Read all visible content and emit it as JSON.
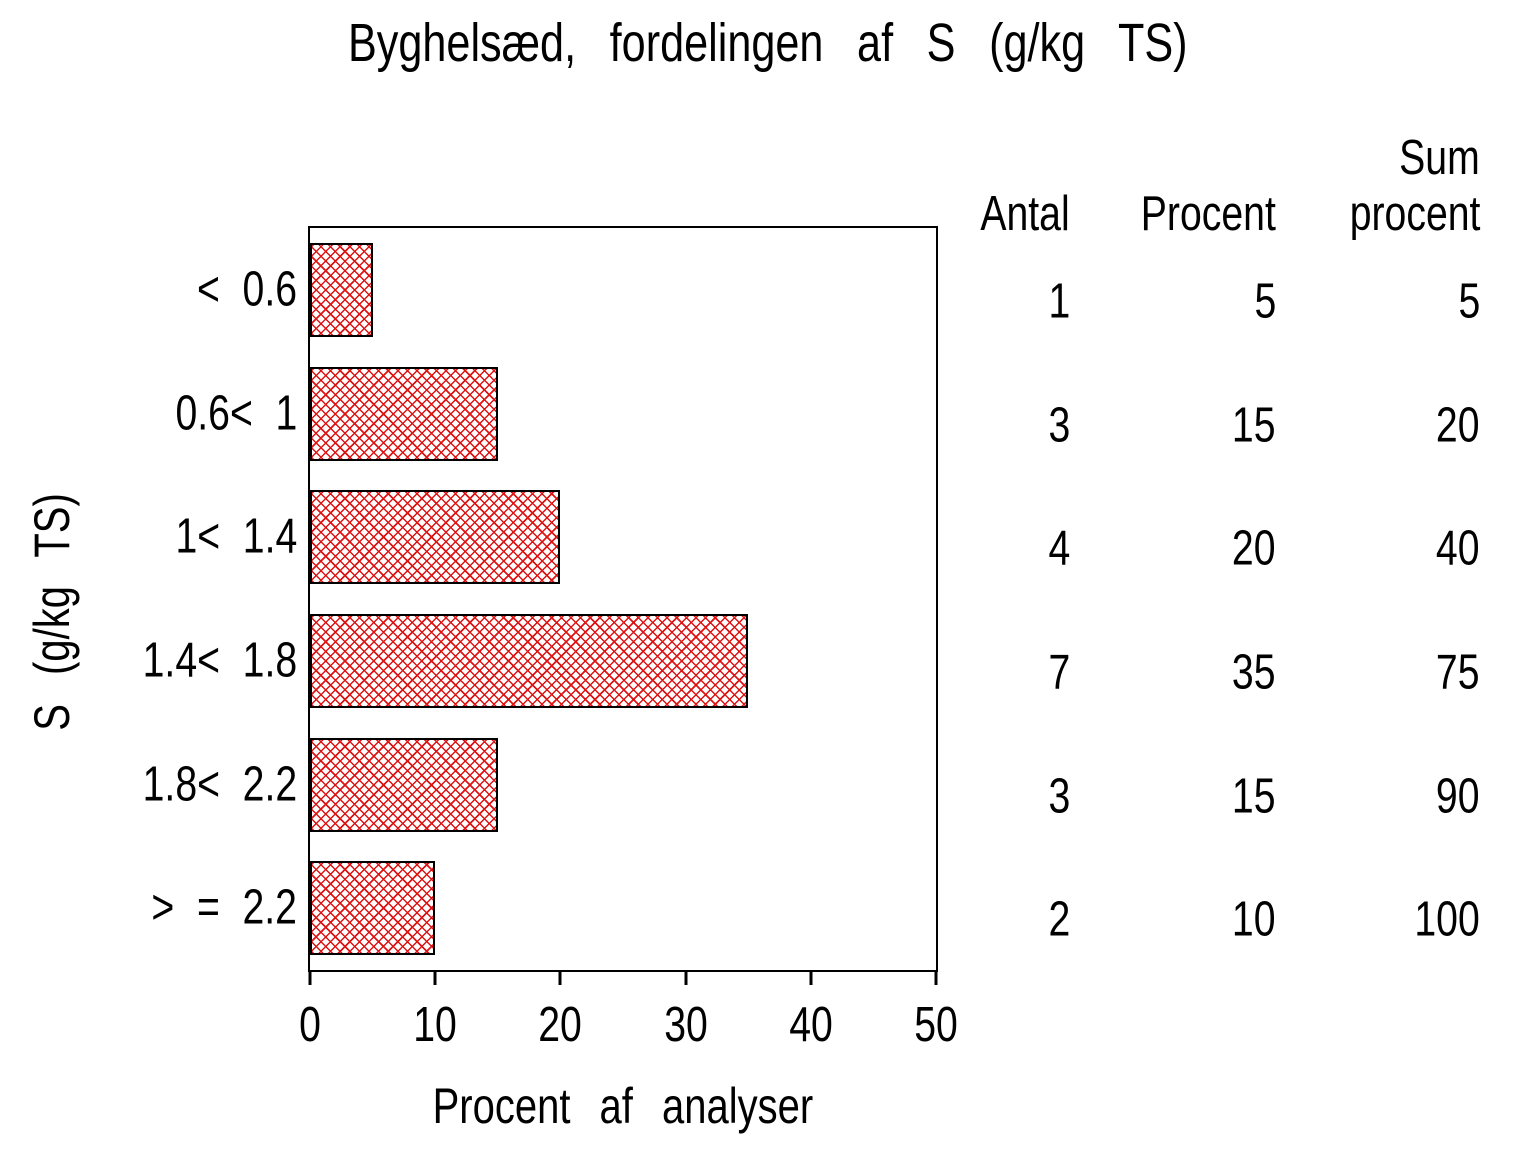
{
  "chart_data": {
    "type": "bar",
    "orientation": "horizontal",
    "title": "Byghelsæd, fordelingen af S (g/kg TS)",
    "xlabel": "Procent af analyser",
    "ylabel": "S (g/kg TS)",
    "categories": [
      "< 0.6",
      "0.6< 1",
      "1< 1.4",
      "1.4< 1.8",
      "1.8< 2.2",
      "> = 2.2"
    ],
    "values": [
      5,
      15,
      20,
      35,
      15,
      10
    ],
    "xlim": [
      0,
      50
    ],
    "xticks": [
      0,
      10,
      20,
      30,
      40,
      50
    ],
    "grid": false,
    "legend": false,
    "bar_style": {
      "pattern": "crosshatch",
      "color": "#dc1414",
      "outline": "#000000"
    },
    "side_table": {
      "headers": [
        [
          "Antal"
        ],
        [
          "Procent"
        ],
        [
          "Sum",
          "procent"
        ]
      ],
      "rows": [
        [
          1,
          5,
          5
        ],
        [
          3,
          15,
          20
        ],
        [
          4,
          20,
          40
        ],
        [
          7,
          35,
          75
        ],
        [
          3,
          15,
          90
        ],
        [
          2,
          10,
          100
        ]
      ]
    }
  }
}
